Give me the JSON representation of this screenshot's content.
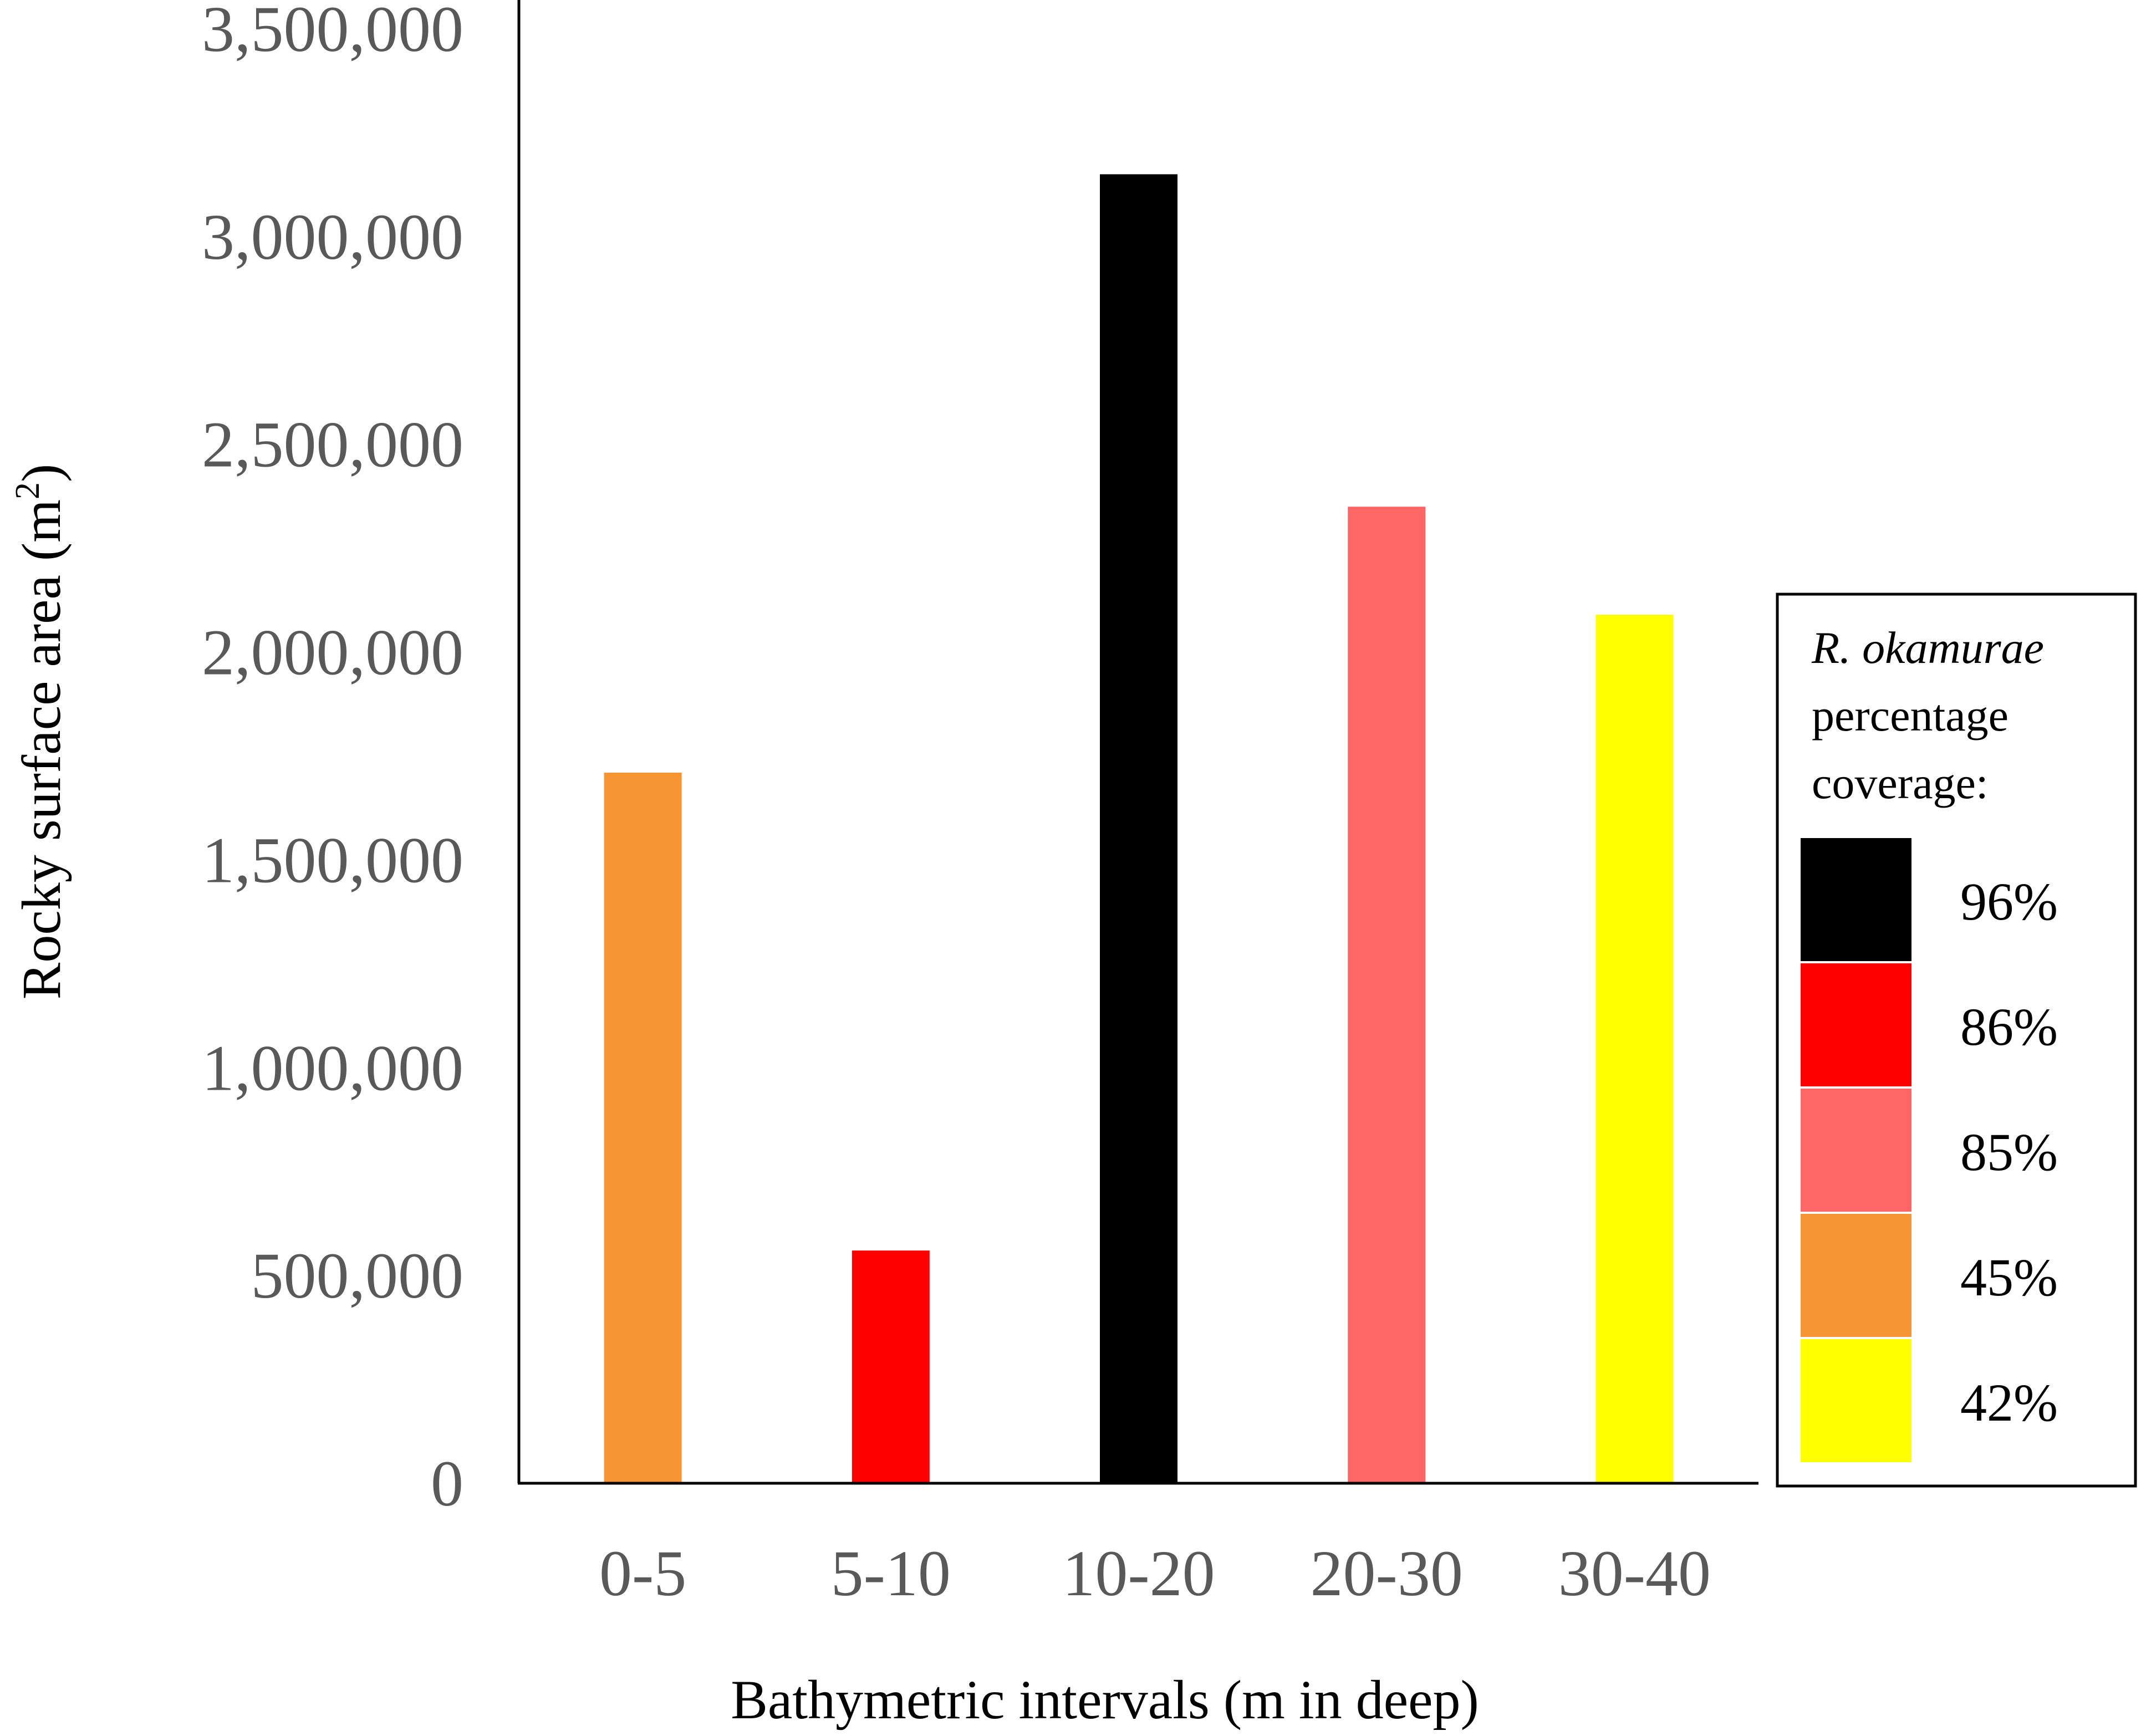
{
  "chart_data": {
    "type": "bar",
    "categories": [
      "0-5",
      "5-10",
      "10-20",
      "20-30",
      "30-40"
    ],
    "values": [
      1710000,
      560000,
      3150000,
      2350000,
      2090000
    ],
    "bar_colors": [
      "#f79433",
      "#ff0000",
      "#000000",
      "#ff6666",
      "#ffff00"
    ],
    "xlabel": "Bathymetric intervals (m in deep)",
    "ylabel_main": "Rocky surface area (m",
    "ylabel_sup": "2",
    "ylabel_end": ")",
    "ylim": [
      0,
      3500000
    ],
    "yticks": [
      0,
      500000,
      1000000,
      1500000,
      2000000,
      2500000,
      3000000,
      3500000
    ],
    "ytick_labels": [
      "0",
      "500,000",
      "1,000,000",
      "1,500,000",
      "2,000,000",
      "2,500,000",
      "3,000,000",
      "3,500,000"
    ],
    "grid": false,
    "legend": {
      "placement": "right",
      "title_italic": "R. okamurae",
      "title_line2": "percentage",
      "title_line3": "coverage:",
      "entries": [
        {
          "label": "96%",
          "color": "#000000"
        },
        {
          "label": "86%",
          "color": "#ff0000"
        },
        {
          "label": "85%",
          "color": "#ff6666"
        },
        {
          "label": "45%",
          "color": "#f79433"
        },
        {
          "label": "42%",
          "color": "#ffff00"
        }
      ]
    }
  }
}
